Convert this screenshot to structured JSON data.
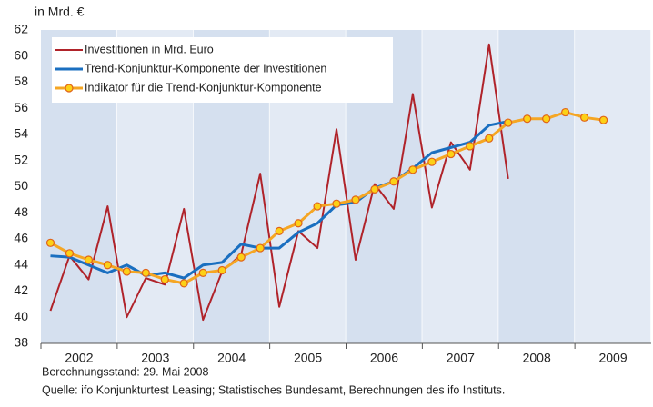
{
  "chart_data": {
    "type": "line",
    "title": "in Mrd. €",
    "notes": [
      "Berechnungsstand: 29. Mai 2008",
      "Quelle: ifo Konjunkturtest  Leasing; Statistisches Bundesamt, Berechnungen des ifo Instituts."
    ],
    "x": [
      2002.125,
      2002.375,
      2002.625,
      2002.875,
      2003.125,
      2003.375,
      2003.625,
      2003.875,
      2004.125,
      2004.375,
      2004.625,
      2004.875,
      2005.125,
      2005.375,
      2005.625,
      2005.875,
      2006.125,
      2006.375,
      2006.625,
      2006.875,
      2007.125,
      2007.375,
      2007.625,
      2007.875,
      2008.125,
      2008.375,
      2008.625,
      2008.875,
      2009.125,
      2009.375
    ],
    "series": [
      {
        "name": "Investitionen in Mrd. Euro",
        "color": "#b0232a",
        "values": [
          40.5,
          44.7,
          42.9,
          48.5,
          40.0,
          43.0,
          42.5,
          48.3,
          39.8,
          43.5,
          44.8,
          51.0,
          40.8,
          46.6,
          45.3,
          54.4,
          44.4,
          50.2,
          48.3,
          57.1,
          48.4,
          53.4,
          51.3,
          60.9,
          50.6,
          null,
          null,
          null,
          null,
          null
        ]
      },
      {
        "name": "Trend-Konjunktur-Komponente der Investitionen",
        "color": "#1a6fc0",
        "values": [
          44.7,
          44.6,
          44.0,
          43.4,
          44.0,
          43.2,
          43.4,
          43.0,
          44.0,
          44.2,
          45.6,
          45.3,
          45.3,
          46.5,
          47.2,
          48.6,
          48.8,
          49.9,
          50.4,
          51.4,
          52.6,
          53.0,
          53.4,
          54.7,
          55.0,
          null,
          null,
          null,
          null,
          null
        ]
      },
      {
        "name": "Indikator für die Trend-Konjunktur-Komponente",
        "color": "#f5a623",
        "marker": "circle",
        "marker_color": "#fcd116",
        "values": [
          45.7,
          44.9,
          44.4,
          44.0,
          43.5,
          43.4,
          42.9,
          42.6,
          43.4,
          43.6,
          44.6,
          45.3,
          46.6,
          47.2,
          48.5,
          48.7,
          49.0,
          49.8,
          50.4,
          51.3,
          51.9,
          52.5,
          53.1,
          53.7,
          54.9,
          55.2,
          55.2,
          55.7,
          55.3,
          55.1
        ]
      }
    ],
    "xlim": [
      2002,
      2010
    ],
    "xticks": [
      {
        "value": 2002.5,
        "label": "2002"
      },
      {
        "value": 2003.5,
        "label": "2003"
      },
      {
        "value": 2004.5,
        "label": "2004"
      },
      {
        "value": 2005.5,
        "label": "2005"
      },
      {
        "value": 2006.5,
        "label": "2006"
      },
      {
        "value": 2007.5,
        "label": "2007"
      },
      {
        "value": 2008.5,
        "label": "2008"
      },
      {
        "value": 2009.5,
        "label": "2009"
      }
    ],
    "ylim": [
      38,
      62
    ],
    "yticks": [
      38,
      40,
      42,
      44,
      46,
      48,
      50,
      52,
      54,
      56,
      58,
      60,
      62
    ],
    "grid": false,
    "legend": "upper left"
  }
}
